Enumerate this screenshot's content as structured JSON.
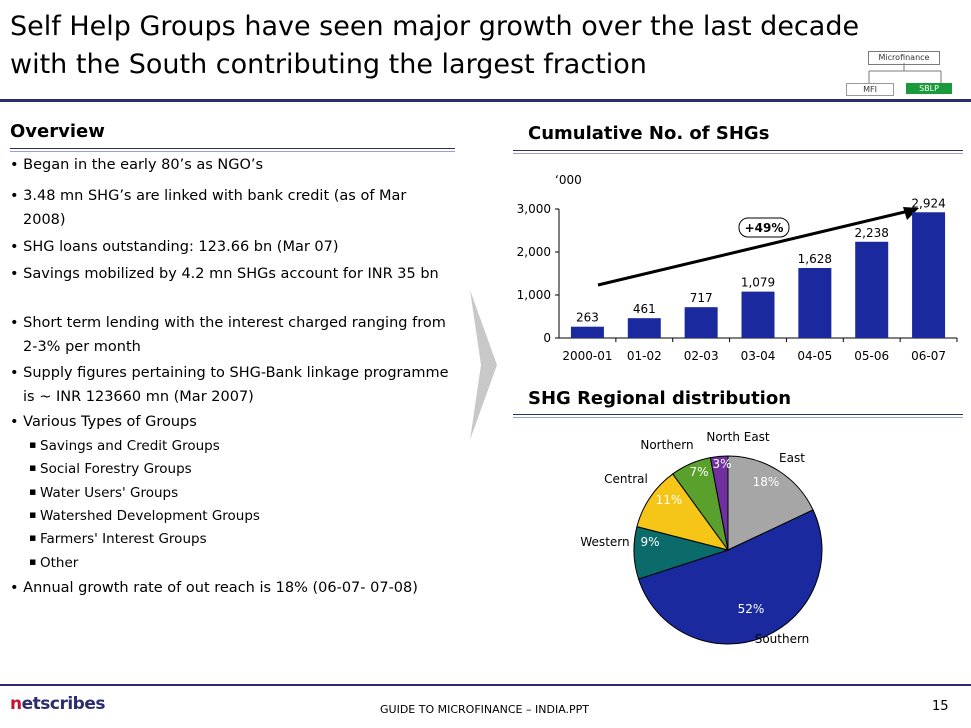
{
  "title": "Self Help Groups have seen major growth over the last decade with the South contributing the largest fraction",
  "header_badges": {
    "microfinance": "Microfinance",
    "mfi": "MFI",
    "sblp": "SBLP"
  },
  "overview": {
    "heading": "Overview",
    "bullets": [
      "• Began in the early 80’s as NGO’s",
      "• 3.48 mn SHG’s are linked with bank credit (as of Mar 2008)",
      "• SHG loans outstanding: 123.66 bn (Mar 07)",
      "• Savings mobilized by 4.2 mn SHGs account for INR 35 bn",
      "• Short term lending with the interest charged ranging from 2-3% per month",
      "• Supply figures pertaining to SHG-Bank linkage programme is ~ INR 123660 mn (Mar 2007)",
      "• Various Types of Groups"
    ],
    "group_types": [
      "Savings and Credit Groups",
      "Social Forestry Groups",
      "Water Users' Groups",
      "Watershed Development Groups",
      "Farmers' Interest Groups",
      "Other"
    ],
    "last_bullet": "• Annual growth rate of out reach is 18% (06-07- 07-08)"
  },
  "chart_data": [
    {
      "type": "bar",
      "title": "Cumulative No. of  SHGs",
      "unit_label": "‘000",
      "categories": [
        "2000-01",
        "01-02",
        "02-03",
        "03-04",
        "04-05",
        "05-06",
        "06-07"
      ],
      "values": [
        263,
        461,
        717,
        1079,
        1628,
        2238,
        2924
      ],
      "value_labels": [
        "263",
        "461",
        "717",
        "1,079",
        "1,628",
        "2,238",
        "2,924"
      ],
      "yticks": [
        "0",
        "1,000",
        "2,000",
        "3,000"
      ],
      "ylim": [
        0,
        3000
      ],
      "annotation": "+49%",
      "bar_color": "#1a2a9e"
    },
    {
      "type": "pie",
      "title": "SHG Regional distribution",
      "labels": [
        "East",
        "Southern",
        "Western",
        "Central",
        "Northern",
        "North East"
      ],
      "values": [
        18,
        52,
        9,
        11,
        7,
        3
      ],
      "pct_labels": [
        "18%",
        "52%",
        "9%",
        "11%",
        "7%",
        "3%"
      ],
      "colors": [
        "#a6a6a6",
        "#1a2a9e",
        "#0b6b6b",
        "#f5c518",
        "#5aa02c",
        "#7030a0"
      ]
    }
  ],
  "footer": {
    "center": "GUIDE TO MICROFINANCE – INDIA.PPT",
    "page": "15",
    "logo_n": "n",
    "logo_rest": "etscribes"
  }
}
